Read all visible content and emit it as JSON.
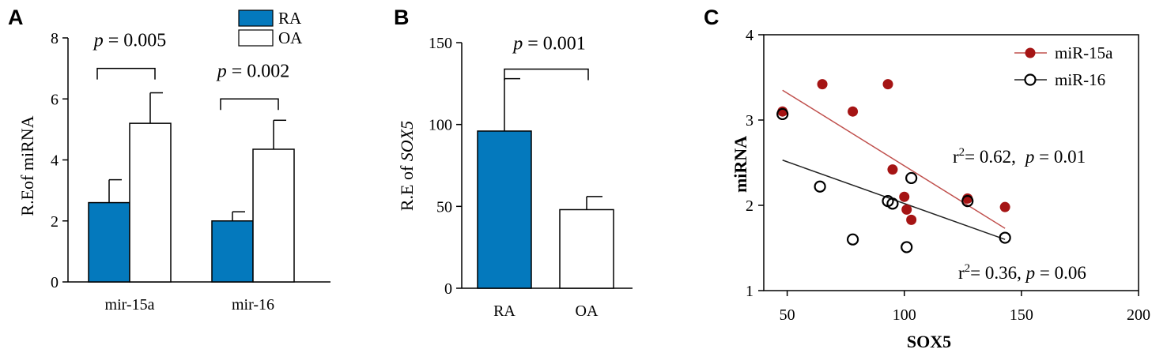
{
  "colors": {
    "RA": "#0479bd",
    "OA": "#ffffff",
    "miR15a": "#a51414",
    "miR16": "#000000",
    "line15a": "#c0504d",
    "line16": "#222222"
  },
  "panels": {
    "A": "A",
    "B": "B",
    "C": "C"
  },
  "chart_data": [
    {
      "type": "bar",
      "panel": "A",
      "ylabel": "R.Eof miRNA",
      "ylim": [
        0,
        8
      ],
      "yticks": [
        0,
        2,
        4,
        6,
        8
      ],
      "categories": [
        "mir-15a",
        "mir-16"
      ],
      "series": [
        {
          "name": "RA",
          "values": [
            2.6,
            2.0
          ],
          "errors": [
            0.75,
            0.3
          ]
        },
        {
          "name": "OA",
          "values": [
            5.2,
            4.35
          ],
          "errors": [
            1.0,
            0.95
          ]
        }
      ],
      "annotations": [
        {
          "group": 0,
          "text": "p = 0.005",
          "p_italic": "p",
          "rest": " = 0.005",
          "bracket_y": 7.0
        },
        {
          "group": 1,
          "text": "p = 0.002",
          "p_italic": "p",
          "rest": " = 0.002",
          "bracket_y": 6.0
        }
      ]
    },
    {
      "type": "bar",
      "panel": "B",
      "ylabel_prefix": "R.E of ",
      "ylabel_italic": "SOX5",
      "ylim": [
        0,
        150
      ],
      "yticks": [
        0,
        50,
        100,
        150
      ],
      "categories": [
        "RA",
        "OA"
      ],
      "values": [
        96,
        48
      ],
      "errors": [
        32,
        8
      ],
      "annotation": {
        "text": "p = 0.001",
        "p_italic": "p",
        "rest": " = 0.001",
        "bracket_y": 143
      }
    },
    {
      "type": "scatter",
      "panel": "C",
      "xlabel": "SOX5",
      "ylabel": "miRNA",
      "xlim": [
        40,
        200
      ],
      "ylim": [
        1,
        4
      ],
      "xticks": [
        50,
        100,
        150,
        200
      ],
      "yticks": [
        1,
        2,
        3,
        4
      ],
      "series": [
        {
          "name": "miR-15a",
          "marker": "filled",
          "points": [
            [
              48,
              3.1
            ],
            [
              65,
              3.42
            ],
            [
              78,
              3.1
            ],
            [
              93,
              3.42
            ],
            [
              95,
              2.42
            ],
            [
              100,
              2.1
            ],
            [
              101,
              1.95
            ],
            [
              103,
              1.83
            ],
            [
              127,
              2.08
            ],
            [
              143,
              1.98
            ]
          ],
          "fit": [
            [
              48,
              3.35
            ],
            [
              143,
              1.73
            ]
          ]
        },
        {
          "name": "miR-16",
          "marker": "open",
          "points": [
            [
              48,
              3.07
            ],
            [
              64,
              2.22
            ],
            [
              78,
              1.6
            ],
            [
              93,
              2.05
            ],
            [
              95,
              2.02
            ],
            [
              101,
              1.51
            ],
            [
              103,
              2.32
            ],
            [
              127,
              2.05
            ],
            [
              143,
              1.62
            ]
          ],
          "fit": [
            [
              48,
              2.53
            ],
            [
              143,
              1.6
            ]
          ]
        }
      ],
      "stats": [
        {
          "series": "miR-15a",
          "r2_label": "r",
          "r2_sup": "2",
          "r2_text": "= 0.62,",
          "p_italic": "p",
          "p_text": " = 0.01"
        },
        {
          "series": "miR-16",
          "r2_label": "r",
          "r2_sup": "2",
          "r2_text": "= 0.36, ",
          "p_italic": "p",
          "p_text": " = 0.06"
        }
      ]
    }
  ]
}
